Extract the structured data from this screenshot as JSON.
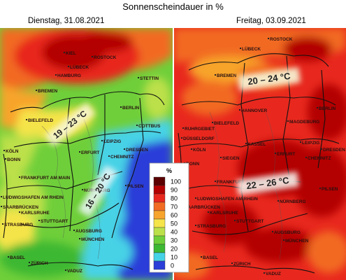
{
  "title": "Sonnenscheindauer in %",
  "panels": {
    "left": {
      "date": "Dienstag, 31.08.2021"
    },
    "right": {
      "date": "Freitag, 03.09.2021"
    }
  },
  "callouts": {
    "left_north": "19 – 23 °C",
    "left_south": "16 – 20 °C",
    "right_north": "20 – 24 °C",
    "right_south": "22 – 26 °C"
  },
  "legend": {
    "unit": "%",
    "steps": [
      {
        "label": "100",
        "color": "#5a0000"
      },
      {
        "label": "90",
        "color": "#b30000"
      },
      {
        "label": "80",
        "color": "#e8281e"
      },
      {
        "label": "70",
        "color": "#f26b22"
      },
      {
        "label": "60",
        "color": "#f7a42c"
      },
      {
        "label": "50",
        "color": "#f5e44a"
      },
      {
        "label": "40",
        "color": "#bce04a"
      },
      {
        "label": "30",
        "color": "#6fcf3a"
      },
      {
        "label": "20",
        "color": "#3db833"
      },
      {
        "label": "10",
        "color": "#46d2e6"
      },
      {
        "label": "0",
        "color": "#2b3ed8"
      }
    ]
  },
  "cities_left": [
    "KIEL",
    "ROSTOCK",
    "LÜBECK",
    "HAMBURG",
    "BREMEN",
    "STETTIN",
    "BERLIN",
    "BIELEFELD",
    "COTTBUS",
    "LEIPZIG",
    "DRESDEN",
    "KÖLN",
    "BONN",
    "ERFURT",
    "CHEMNITZ",
    "FRANKFURT AM MAIN",
    "NÜRNBERG",
    "PILSEN",
    "LUDWIGSHAFEN AM RHEIN",
    "SAARBRÜCKEN",
    "KARLSRUHE",
    "STUTTGART",
    "STRASBURG",
    "AUGSBURG",
    "MÜNCHEN",
    "ZÜRICH",
    "BASEL",
    "VADUZ"
  ],
  "cities_right": [
    "ROSTOCK",
    "LÜBECK",
    "BREMEN",
    "HANNOVER",
    "BERLIN",
    "RUHRGEBIET",
    "DÜSSELDORF",
    "BIELEFELD",
    "MAGDEBURG",
    "KASSEL",
    "KÖLN",
    "BONN",
    "SIEGEN",
    "ERFURT",
    "LEIPZIG",
    "DRESDEN",
    "CHEMNITZ",
    "FRANKFURT AM MAIN",
    "LUDWIGSHAFEN AM RHEIN",
    "SAARBRÜCKEN",
    "KARLSRUHE",
    "NÜRNBERG",
    "STUTTGART",
    "STRASBURG",
    "AUGSBURG",
    "PILSEN",
    "MÜNCHEN",
    "BASEL",
    "ZÜRICH",
    "VADUZ"
  ]
}
